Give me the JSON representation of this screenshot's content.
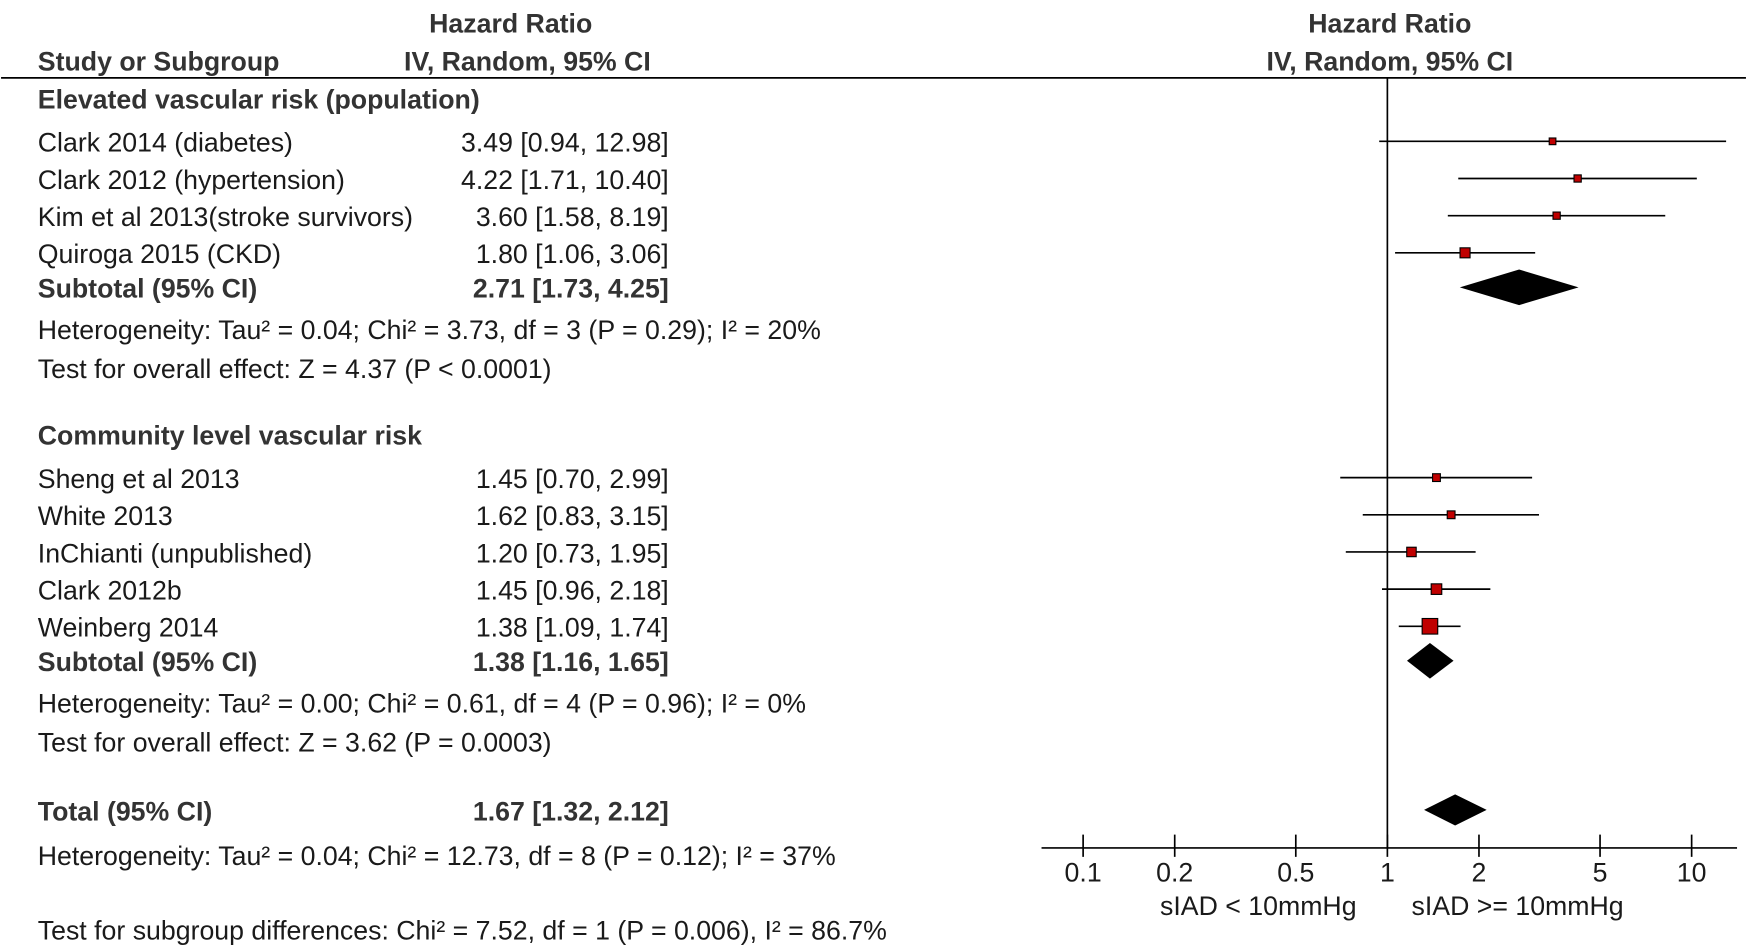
{
  "chart_data": {
    "type": "forest",
    "study_header": "Study or Subgroup",
    "table_title": "Hazard Ratio",
    "table_method": "IV, Random, 95% CI",
    "plot_title": "Hazard Ratio",
    "plot_method": "IV, Random, 95% CI",
    "groups": [
      {
        "title": "Elevated vascular risk (population)",
        "studies": [
          {
            "name": "Clark 2014 (diabetes)",
            "hr": 3.49,
            "ci": [
              0.94,
              12.98
            ],
            "label": "3.49 [0.94, 12.98]",
            "weight": 4
          },
          {
            "name": "Clark 2012 (hypertension)",
            "hr": 4.22,
            "ci": [
              1.71,
              10.4
            ],
            "label": "4.22 [1.71, 10.40]",
            "weight": 5
          },
          {
            "name": "Kim et al 2013(stroke survivors)",
            "hr": 3.6,
            "ci": [
              1.58,
              8.19
            ],
            "label": "3.60 [1.58, 8.19]",
            "weight": 5
          },
          {
            "name": "Quiroga 2015 (CKD)",
            "hr": 1.8,
            "ci": [
              1.06,
              3.06
            ],
            "label": "1.80 [1.06, 3.06]",
            "weight": 10
          }
        ],
        "subtotal": {
          "name": "Subtotal (95% CI)",
          "hr": 2.71,
          "ci": [
            1.73,
            4.25
          ],
          "label": "2.71 [1.73, 4.25]"
        },
        "heterogeneity": "Heterogeneity: Tau² = 0.04; Chi² = 3.73, df = 3 (P = 0.29); I² = 20%",
        "overall_effect": "Test for overall effect: Z = 4.37 (P < 0.0001)"
      },
      {
        "title": "Community level vascular risk",
        "studies": [
          {
            "name": "Sheng et al 2013",
            "hr": 1.45,
            "ci": [
              0.7,
              2.99
            ],
            "label": "1.45 [0.70, 2.99]",
            "weight": 6
          },
          {
            "name": "White 2013",
            "hr": 1.62,
            "ci": [
              0.83,
              3.15
            ],
            "label": "1.62 [0.83, 3.15]",
            "weight": 6
          },
          {
            "name": "InChianti (unpublished)",
            "hr": 1.2,
            "ci": [
              0.73,
              1.95
            ],
            "label": "1.20 [0.73, 1.95]",
            "weight": 9
          },
          {
            "name": "Clark 2012b",
            "hr": 1.45,
            "ci": [
              0.96,
              2.18
            ],
            "label": "1.45 [0.96, 2.18]",
            "weight": 11
          },
          {
            "name": "Weinberg 2014",
            "hr": 1.38,
            "ci": [
              1.09,
              1.74
            ],
            "label": "1.38 [1.09, 1.74]",
            "weight": 20
          }
        ],
        "subtotal": {
          "name": "Subtotal (95% CI)",
          "hr": 1.38,
          "ci": [
            1.16,
            1.65
          ],
          "label": "1.38 [1.16, 1.65]"
        },
        "heterogeneity": "Heterogeneity: Tau² = 0.00; Chi² = 0.61, df = 4 (P = 0.96); I² = 0%",
        "overall_effect": "Test for overall effect: Z = 3.62 (P = 0.0003)"
      }
    ],
    "total": {
      "name": "Total (95% CI)",
      "hr": 1.67,
      "ci": [
        1.32,
        2.12
      ],
      "label": "1.67 [1.32, 2.12]",
      "heterogeneity": "Heterogeneity: Tau² = 0.04; Chi² = 12.73, df = 8 (P = 0.12); I² = 37%"
    },
    "subgroup_test": "Test for subgroup differences: Chi² = 7.52, df = 1 (P = 0.006), I² = 86.7%",
    "xscale": "log",
    "xlim": [
      0.073,
      14.1
    ],
    "xticks": [
      0.1,
      0.2,
      0.5,
      1,
      2,
      5,
      10
    ],
    "reference": 1,
    "x_labels": [
      "sIAD < 10mmHg",
      "sIAD >= 10mmHg"
    ],
    "color": "#c00000"
  }
}
